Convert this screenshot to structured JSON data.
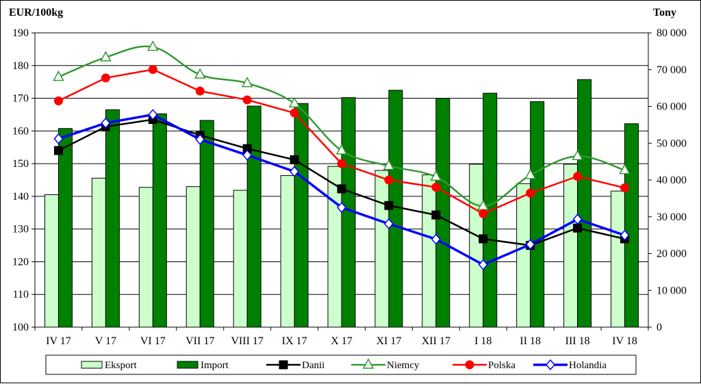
{
  "chart_data": {
    "type": "bar",
    "ylabel_left": "EUR/100kg",
    "ylabel_right": "Tony",
    "categories": [
      "IV 17",
      "V 17",
      "VI 17",
      "VII 17",
      "VIII 17",
      "IX 17",
      "X 17",
      "XI 17",
      "XII 17",
      "I 18",
      "II 18",
      "III 18",
      "IV 18"
    ],
    "left_axis": {
      "min": 100,
      "max": 190,
      "step": 10,
      "ticks": [
        "100",
        "110",
        "120",
        "130",
        "140",
        "150",
        "160",
        "170",
        "180",
        "190"
      ]
    },
    "right_axis": {
      "min": 0,
      "max": 80000,
      "step": 10000,
      "ticks": [
        "0",
        "10 000",
        "20 000",
        "30 000",
        "40 000",
        "50 000",
        "60 000",
        "70 000",
        "80 000"
      ]
    },
    "bar_series": [
      {
        "name": "Eksport",
        "axis": "right",
        "color": "#ccffcc",
        "values": [
          36000,
          40500,
          38000,
          38200,
          37200,
          41200,
          43700,
          42600,
          41400,
          44300,
          39000,
          44300,
          37000
        ]
      },
      {
        "name": "Import",
        "axis": "right",
        "color": "#008000",
        "values": [
          54000,
          59100,
          58000,
          56200,
          60100,
          60800,
          62400,
          64400,
          62200,
          63600,
          61300,
          67300,
          55300
        ]
      }
    ],
    "line_series": [
      {
        "name": "Danii",
        "axis": "left",
        "color": "#000000",
        "marker": "square",
        "smooth": false,
        "values": [
          154,
          161.3,
          163.5,
          158.7,
          154.6,
          151.2,
          142.3,
          137.2,
          134.3,
          127,
          125,
          130.3,
          127
        ]
      },
      {
        "name": "Niemcy",
        "axis": "left",
        "color": "#339933",
        "marker": "triangle",
        "smooth": true,
        "values": [
          176.5,
          182.5,
          185.7,
          177.2,
          174.6,
          168.4,
          154,
          149.3,
          146,
          137,
          146.5,
          152.3,
          148
        ]
      },
      {
        "name": "Polska",
        "axis": "left",
        "color": "#ff0000",
        "marker": "circle",
        "smooth": false,
        "values": [
          169.2,
          176.2,
          178.8,
          172.2,
          169.5,
          165.5,
          150,
          145,
          142.8,
          134.7,
          141,
          146.1,
          142.6
        ]
      },
      {
        "name": "Holandia",
        "axis": "left",
        "color": "#0000ff",
        "marker": "diamond",
        "smooth": false,
        "values": [
          157.6,
          162.4,
          165,
          157.4,
          152.6,
          147.6,
          136.6,
          131.6,
          126.9,
          119.1,
          125.3,
          133,
          128.1
        ]
      }
    ],
    "grid": true,
    "legend_position": "bottom"
  }
}
